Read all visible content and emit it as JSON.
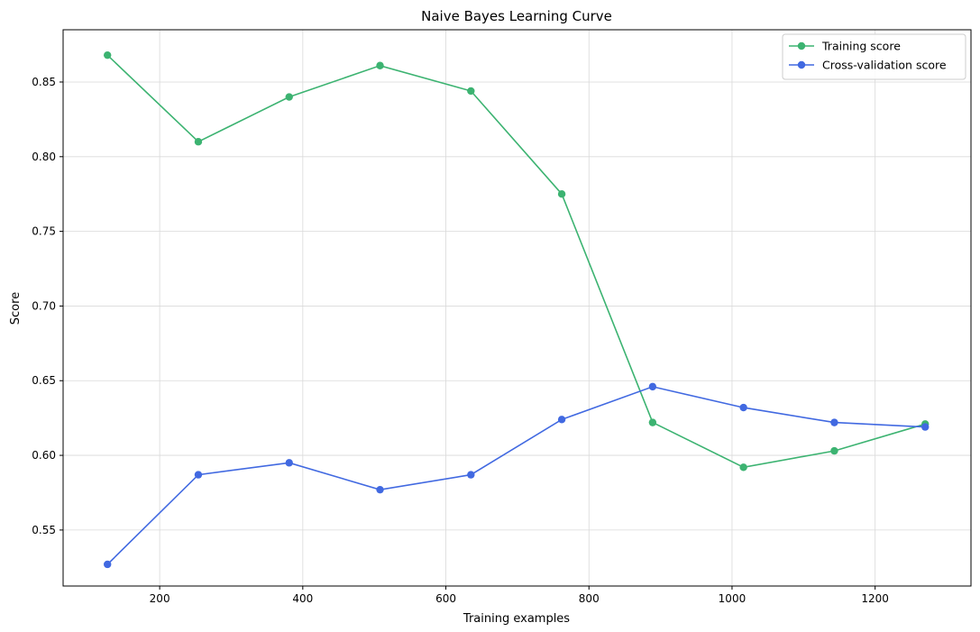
{
  "chart_data": {
    "type": "line",
    "title": "Naive Bayes Learning Curve",
    "xlabel": "Training examples",
    "ylabel": "Score",
    "xlim": [
      65,
      1334
    ],
    "ylim": [
      0.5125,
      0.885
    ],
    "xticks": [
      200,
      400,
      600,
      800,
      1000,
      1200
    ],
    "yticks": [
      0.55,
      0.6,
      0.65,
      0.7,
      0.75,
      0.8,
      0.85
    ],
    "xtick_labels": [
      "200",
      "400",
      "600",
      "800",
      "1000",
      "1200"
    ],
    "ytick_labels": [
      "0.55",
      "0.60",
      "0.65",
      "0.70",
      "0.75",
      "0.80",
      "0.85"
    ],
    "grid": true,
    "legend_position": "top-right",
    "x": [
      127,
      254,
      381,
      508,
      635,
      762,
      889,
      1016,
      1143,
      1270
    ],
    "series": [
      {
        "name": "Training score",
        "color": "#3cb371",
        "values": [
          0.868,
          0.81,
          0.84,
          0.861,
          0.844,
          0.775,
          0.622,
          0.592,
          0.603,
          0.621
        ]
      },
      {
        "name": "Cross-validation score",
        "color": "#4169e1",
        "values": [
          0.527,
          0.587,
          0.595,
          0.577,
          0.587,
          0.624,
          0.646,
          0.632,
          0.622,
          0.619
        ]
      }
    ]
  }
}
